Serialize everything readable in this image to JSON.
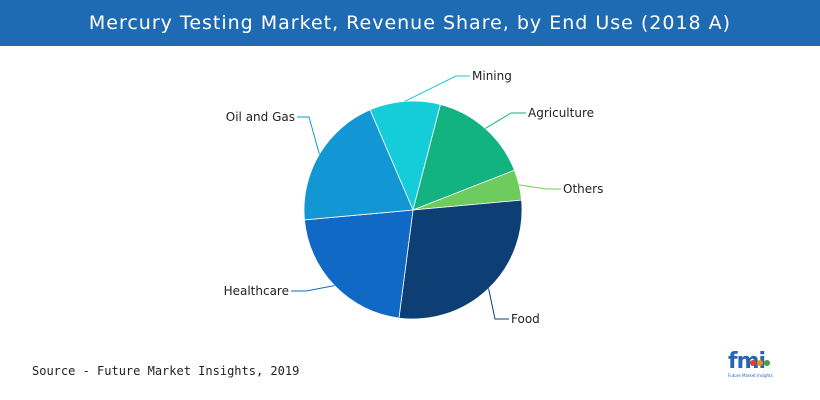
{
  "header": {
    "title": "Mercury Testing Market, Revenue Share, by End Use (2018 A)"
  },
  "chart_data": {
    "type": "pie",
    "title": "Mercury Testing Market, Revenue Share, by End Use (2018 A)",
    "slices": [
      {
        "label": "Mining",
        "value": 10.5,
        "color": "#14cdd8"
      },
      {
        "label": "Agriculture",
        "value": 15.0,
        "color": "#13b381"
      },
      {
        "label": "Others",
        "value": 4.5,
        "color": "#6ecb5e"
      },
      {
        "label": "Food",
        "value": 28.5,
        "color": "#0d3f74"
      },
      {
        "label": "Healthcare",
        "value": 21.5,
        "color": "#1169c6"
      },
      {
        "label": "Oil and Gas",
        "value": 20.0,
        "color": "#1397d4"
      }
    ]
  },
  "footer": {
    "source": "Source - Future Market Insights, 2019",
    "logo_text": "fmi",
    "logo_tagline": "Future Market Insights"
  }
}
